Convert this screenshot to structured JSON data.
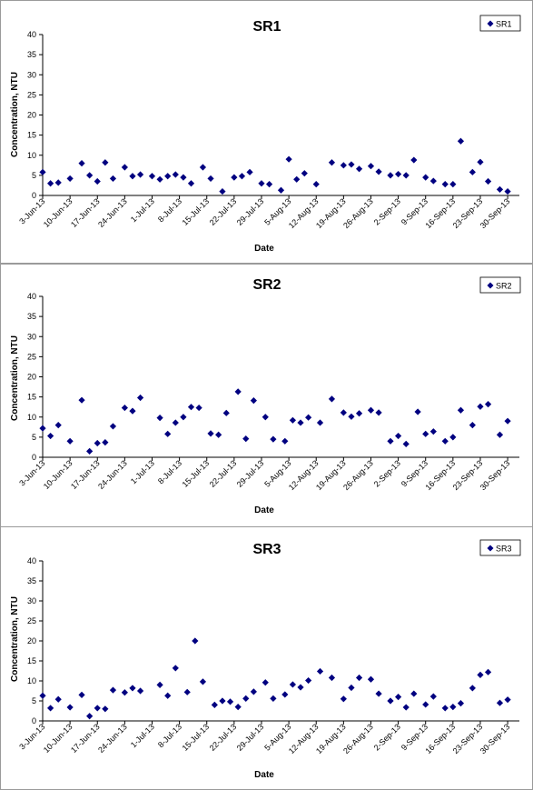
{
  "chart_data": [
    {
      "type": "scatter",
      "title": "SR1",
      "xlabel": "Date",
      "ylabel": "Concentration, NTU",
      "ylim": [
        0,
        40
      ],
      "yticks": [
        0,
        5,
        10,
        15,
        20,
        25,
        30,
        35,
        40
      ],
      "xlim": [
        "3-Jun-13",
        "3-Oct-13"
      ],
      "xtick_labels": [
        "3-Jun-13",
        "10-Jun-13",
        "17-Jun-13",
        "24-Jun-13",
        "1-Jul-13",
        "8-Jul-13",
        "15-Jul-13",
        "22-Jul-13",
        "29-Jul-13",
        "5-Aug-13",
        "12-Aug-13",
        "19-Aug-13",
        "26-Aug-13",
        "2-Sep-13",
        "9-Sep-13",
        "16-Sep-13",
        "23-Sep-13",
        "30-Sep-13"
      ],
      "grid": false,
      "legend": "top-right",
      "marker": "diamond",
      "color": "#000080",
      "series": [
        {
          "name": "SR1",
          "x": [
            "3-Jun-13",
            "5-Jun-13",
            "7-Jun-13",
            "10-Jun-13",
            "13-Jun-13",
            "15-Jun-13",
            "17-Jun-13",
            "19-Jun-13",
            "21-Jun-13",
            "24-Jun-13",
            "26-Jun-13",
            "28-Jun-13",
            "1-Jul-13",
            "3-Jul-13",
            "5-Jul-13",
            "7-Jul-13",
            "9-Jul-13",
            "11-Jul-13",
            "14-Jul-13",
            "16-Jul-13",
            "19-Jul-13",
            "22-Jul-13",
            "24-Jul-13",
            "26-Jul-13",
            "29-Jul-13",
            "31-Jul-13",
            "3-Aug-13",
            "5-Aug-13",
            "7-Aug-13",
            "9-Aug-13",
            "12-Aug-13",
            "16-Aug-13",
            "19-Aug-13",
            "21-Aug-13",
            "23-Aug-13",
            "26-Aug-13",
            "28-Aug-13",
            "31-Aug-13",
            "2-Sep-13",
            "4-Sep-13",
            "6-Sep-13",
            "9-Sep-13",
            "11-Sep-13",
            "14-Sep-13",
            "16-Sep-13",
            "18-Sep-13",
            "21-Sep-13",
            "23-Sep-13",
            "25-Sep-13",
            "28-Sep-13",
            "30-Sep-13"
          ],
          "y": [
            5.8,
            3.0,
            3.2,
            4.2,
            8.0,
            5.0,
            3.5,
            8.2,
            4.2,
            7.0,
            4.8,
            5.2,
            4.8,
            4.0,
            4.8,
            5.2,
            4.5,
            3.0,
            7.0,
            4.2,
            1.0,
            4.5,
            4.8,
            5.8,
            3.0,
            2.8,
            1.3,
            9.0,
            4.0,
            5.5,
            2.8,
            8.2,
            7.5,
            7.7,
            6.6,
            7.3,
            5.9,
            5.0,
            5.3,
            5.0,
            8.8,
            4.5,
            3.6,
            2.8,
            2.8,
            13.5,
            5.8,
            8.3,
            3.5,
            1.5,
            1.0
          ]
        }
      ]
    },
    {
      "type": "scatter",
      "title": "SR2",
      "xlabel": "Date",
      "ylabel": "Concentration, NTU",
      "ylim": [
        0,
        40
      ],
      "yticks": [
        0,
        5,
        10,
        15,
        20,
        25,
        30,
        35,
        40
      ],
      "xlim": [
        "3-Jun-13",
        "3-Oct-13"
      ],
      "xtick_labels": [
        "3-Jun-13",
        "10-Jun-13",
        "17-Jun-13",
        "24-Jun-13",
        "1-Jul-13",
        "8-Jul-13",
        "15-Jul-13",
        "22-Jul-13",
        "29-Jul-13",
        "5-Aug-13",
        "12-Aug-13",
        "19-Aug-13",
        "26-Aug-13",
        "2-Sep-13",
        "9-Sep-13",
        "16-Sep-13",
        "23-Sep-13",
        "30-Sep-13"
      ],
      "grid": false,
      "legend": "top-right",
      "marker": "diamond",
      "color": "#000080",
      "series": [
        {
          "name": "SR2",
          "x": [
            "3-Jun-13",
            "5-Jun-13",
            "7-Jun-13",
            "10-Jun-13",
            "13-Jun-13",
            "15-Jun-13",
            "17-Jun-13",
            "19-Jun-13",
            "21-Jun-13",
            "24-Jun-13",
            "26-Jun-13",
            "28-Jun-13",
            "3-Jul-13",
            "5-Jul-13",
            "7-Jul-13",
            "9-Jul-13",
            "11-Jul-13",
            "13-Jul-13",
            "16-Jul-13",
            "18-Jul-13",
            "20-Jul-13",
            "23-Jul-13",
            "25-Jul-13",
            "27-Jul-13",
            "30-Jul-13",
            "1-Aug-13",
            "4-Aug-13",
            "6-Aug-13",
            "8-Aug-13",
            "10-Aug-13",
            "13-Aug-13",
            "16-Aug-13",
            "19-Aug-13",
            "21-Aug-13",
            "23-Aug-13",
            "26-Aug-13",
            "28-Aug-13",
            "31-Aug-13",
            "2-Sep-13",
            "4-Sep-13",
            "7-Sep-13",
            "9-Sep-13",
            "11-Sep-13",
            "14-Sep-13",
            "16-Sep-13",
            "18-Sep-13",
            "21-Sep-13",
            "23-Sep-13",
            "25-Sep-13",
            "28-Sep-13",
            "30-Sep-13"
          ],
          "y": [
            7.2,
            5.3,
            8.0,
            4.0,
            14.2,
            1.5,
            3.5,
            3.7,
            7.7,
            12.3,
            11.5,
            14.8,
            9.8,
            5.8,
            8.6,
            10.0,
            12.5,
            12.3,
            5.9,
            5.6,
            11.0,
            16.3,
            4.6,
            14.1,
            10.0,
            4.5,
            4.0,
            9.2,
            8.6,
            9.9,
            8.6,
            14.5,
            11.1,
            10.1,
            10.9,
            11.7,
            11.1,
            4.0,
            5.3,
            3.3,
            11.3,
            5.8,
            6.4,
            4.0,
            5.0,
            11.7,
            8.0,
            12.6,
            13.2,
            5.6,
            9.0
          ]
        }
      ]
    },
    {
      "type": "scatter",
      "title": "SR3",
      "xlabel": "Date",
      "ylabel": "Concentration, NTU",
      "ylim": [
        0,
        40
      ],
      "yticks": [
        0,
        5,
        10,
        15,
        20,
        25,
        30,
        35,
        40
      ],
      "xlim": [
        "3-Jun-13",
        "3-Oct-13"
      ],
      "xtick_labels": [
        "3-Jun-13",
        "10-Jun-13",
        "17-Jun-13",
        "24-Jun-13",
        "1-Jul-13",
        "8-Jul-13",
        "15-Jul-13",
        "22-Jul-13",
        "29-Jul-13",
        "5-Aug-13",
        "12-Aug-13",
        "19-Aug-13",
        "26-Aug-13",
        "2-Sep-13",
        "9-Sep-13",
        "16-Sep-13",
        "23-Sep-13",
        "30-Sep-13"
      ],
      "grid": false,
      "legend": "top-right",
      "marker": "diamond",
      "color": "#000080",
      "series": [
        {
          "name": "SR3",
          "x": [
            "3-Jun-13",
            "5-Jun-13",
            "7-Jun-13",
            "10-Jun-13",
            "13-Jun-13",
            "15-Jun-13",
            "17-Jun-13",
            "19-Jun-13",
            "21-Jun-13",
            "24-Jun-13",
            "26-Jun-13",
            "28-Jun-13",
            "3-Jul-13",
            "5-Jul-13",
            "7-Jul-13",
            "10-Jul-13",
            "12-Jul-13",
            "14-Jul-13",
            "17-Jul-13",
            "19-Jul-13",
            "21-Jul-13",
            "23-Jul-13",
            "25-Jul-13",
            "27-Jul-13",
            "30-Jul-13",
            "1-Aug-13",
            "4-Aug-13",
            "6-Aug-13",
            "8-Aug-13",
            "10-Aug-13",
            "13-Aug-13",
            "16-Aug-13",
            "19-Aug-13",
            "21-Aug-13",
            "23-Aug-13",
            "26-Aug-13",
            "28-Aug-13",
            "31-Aug-13",
            "2-Sep-13",
            "4-Sep-13",
            "6-Sep-13",
            "9-Sep-13",
            "11-Sep-13",
            "14-Sep-13",
            "16-Sep-13",
            "18-Sep-13",
            "21-Sep-13",
            "23-Sep-13",
            "25-Sep-13",
            "28-Sep-13",
            "30-Sep-13"
          ],
          "y": [
            6.3,
            3.2,
            5.4,
            3.4,
            6.5,
            1.2,
            3.2,
            3.0,
            7.7,
            7.1,
            8.2,
            7.5,
            9.0,
            6.3,
            13.2,
            7.2,
            20.0,
            9.8,
            4.0,
            5.0,
            4.8,
            3.5,
            5.6,
            7.3,
            9.6,
            5.6,
            6.6,
            9.1,
            8.4,
            10.1,
            12.4,
            10.8,
            5.5,
            8.3,
            10.8,
            10.4,
            6.8,
            5.0,
            6.0,
            3.4,
            6.8,
            4.1,
            6.1,
            3.2,
            3.5,
            4.4,
            8.2,
            11.5,
            12.2,
            4.5,
            5.3
          ]
        }
      ]
    }
  ]
}
